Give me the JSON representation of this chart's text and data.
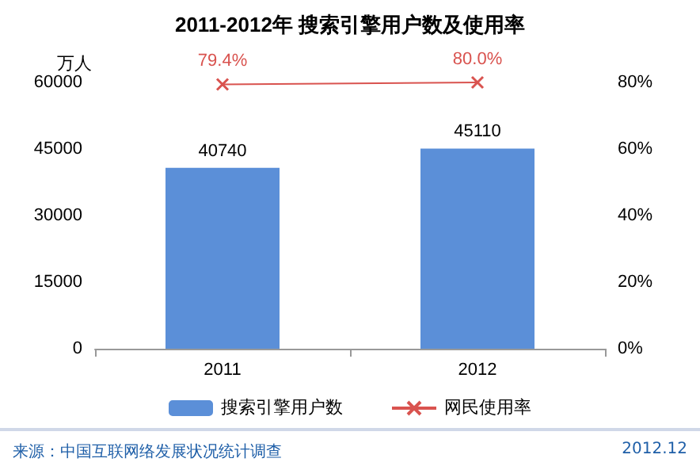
{
  "chart_data": {
    "type": "bar",
    "title": "2011-2012年 搜索引擎用户数及使用率",
    "ylabel": "万人",
    "categories": [
      "2011",
      "2012"
    ],
    "series": [
      {
        "name": "搜索引擎用户数",
        "color": "#5b8fd8",
        "values": [
          40740,
          45110
        ],
        "value_labels": [
          "40740",
          "45110"
        ]
      },
      {
        "name": "网民使用率",
        "type": "line",
        "axis": "y2",
        "color": "#d9534f",
        "marker": "cross",
        "values": [
          79.4,
          80.0
        ],
        "value_labels": [
          "79.4%",
          "80.0%"
        ]
      }
    ],
    "ylim": [
      0,
      60000
    ],
    "yticks": [
      0,
      15000,
      30000,
      45000,
      60000
    ],
    "y2lim": [
      0,
      80
    ],
    "y2ticks": [
      {
        "value": 0,
        "label": "0%"
      },
      {
        "value": 20,
        "label": "20%"
      },
      {
        "value": 40,
        "label": "40%"
      },
      {
        "value": 60,
        "label": "60%"
      },
      {
        "value": 80,
        "label": "80%"
      }
    ],
    "legend": "bottom",
    "grid": false,
    "annotations": [
      "来源：中国互联网络发展状况统计调查",
      "2012.12"
    ]
  }
}
